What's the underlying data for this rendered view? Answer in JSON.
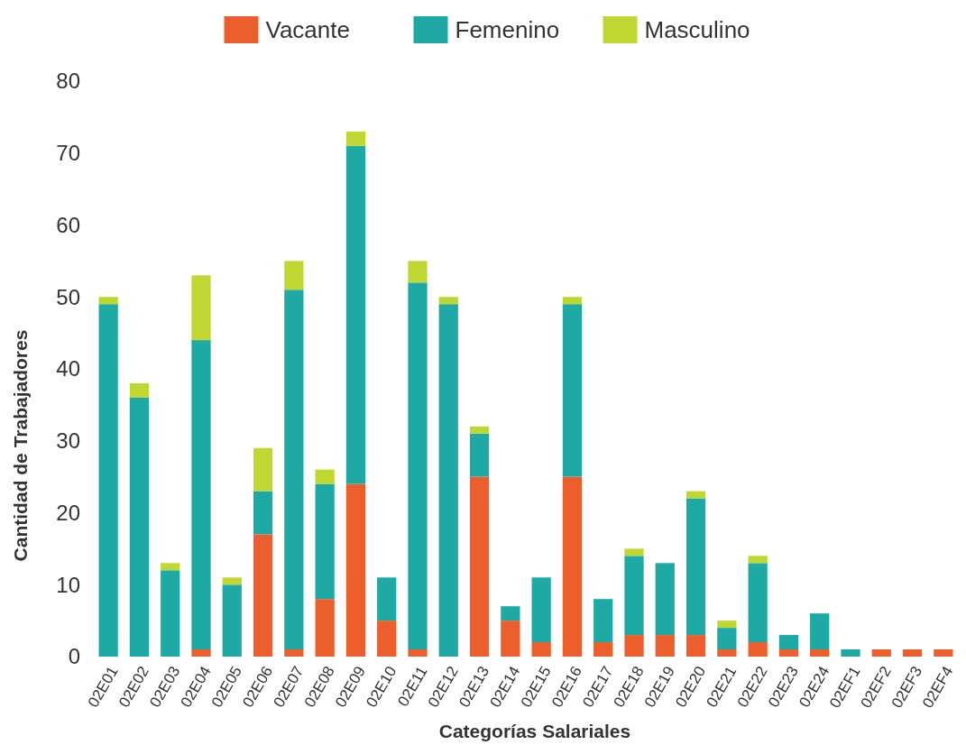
{
  "chart_data": {
    "type": "bar",
    "stacked": true,
    "xlabel": "Categorías Salariales",
    "ylabel": "Cantidad de Trabajadores",
    "categories": [
      "02E01",
      "02E02",
      "02E03",
      "02E04",
      "02E05",
      "02E06",
      "02E07",
      "02E08",
      "02E09",
      "02E10",
      "02E11",
      "02E12",
      "02E13",
      "02E14",
      "02E15",
      "02E16",
      "02E17",
      "02E18",
      "02E19",
      "02E20",
      "02E21",
      "02E22",
      "02E23",
      "02E24",
      "02EF1",
      "02EF2",
      "02EF3",
      "02EF4"
    ],
    "series": [
      {
        "name": "Vacante",
        "color": "#ec5f2c",
        "values": [
          0,
          0,
          0,
          1,
          0,
          17,
          1,
          8,
          24,
          5,
          1,
          0,
          25,
          5,
          2,
          25,
          2,
          3,
          3,
          3,
          1,
          2,
          1,
          1,
          0,
          1,
          1,
          1
        ]
      },
      {
        "name": "Femenino",
        "color": "#1fa9a5",
        "values": [
          49,
          36,
          12,
          43,
          10,
          6,
          50,
          16,
          47,
          6,
          51,
          49,
          6,
          2,
          9,
          24,
          6,
          11,
          10,
          19,
          3,
          11,
          2,
          5,
          1,
          0,
          0,
          0
        ]
      },
      {
        "name": "Masculino",
        "color": "#bfd730",
        "values": [
          1,
          2,
          1,
          9,
          1,
          6,
          4,
          2,
          2,
          0,
          3,
          1,
          1,
          0,
          0,
          1,
          0,
          1,
          0,
          1,
          1,
          1,
          0,
          0,
          0,
          0,
          0,
          0
        ]
      }
    ],
    "ylim": [
      0,
      80
    ],
    "yticks": [
      0,
      10,
      20,
      30,
      40,
      50,
      60,
      70,
      80
    ],
    "grid": false,
    "legend": "top"
  }
}
